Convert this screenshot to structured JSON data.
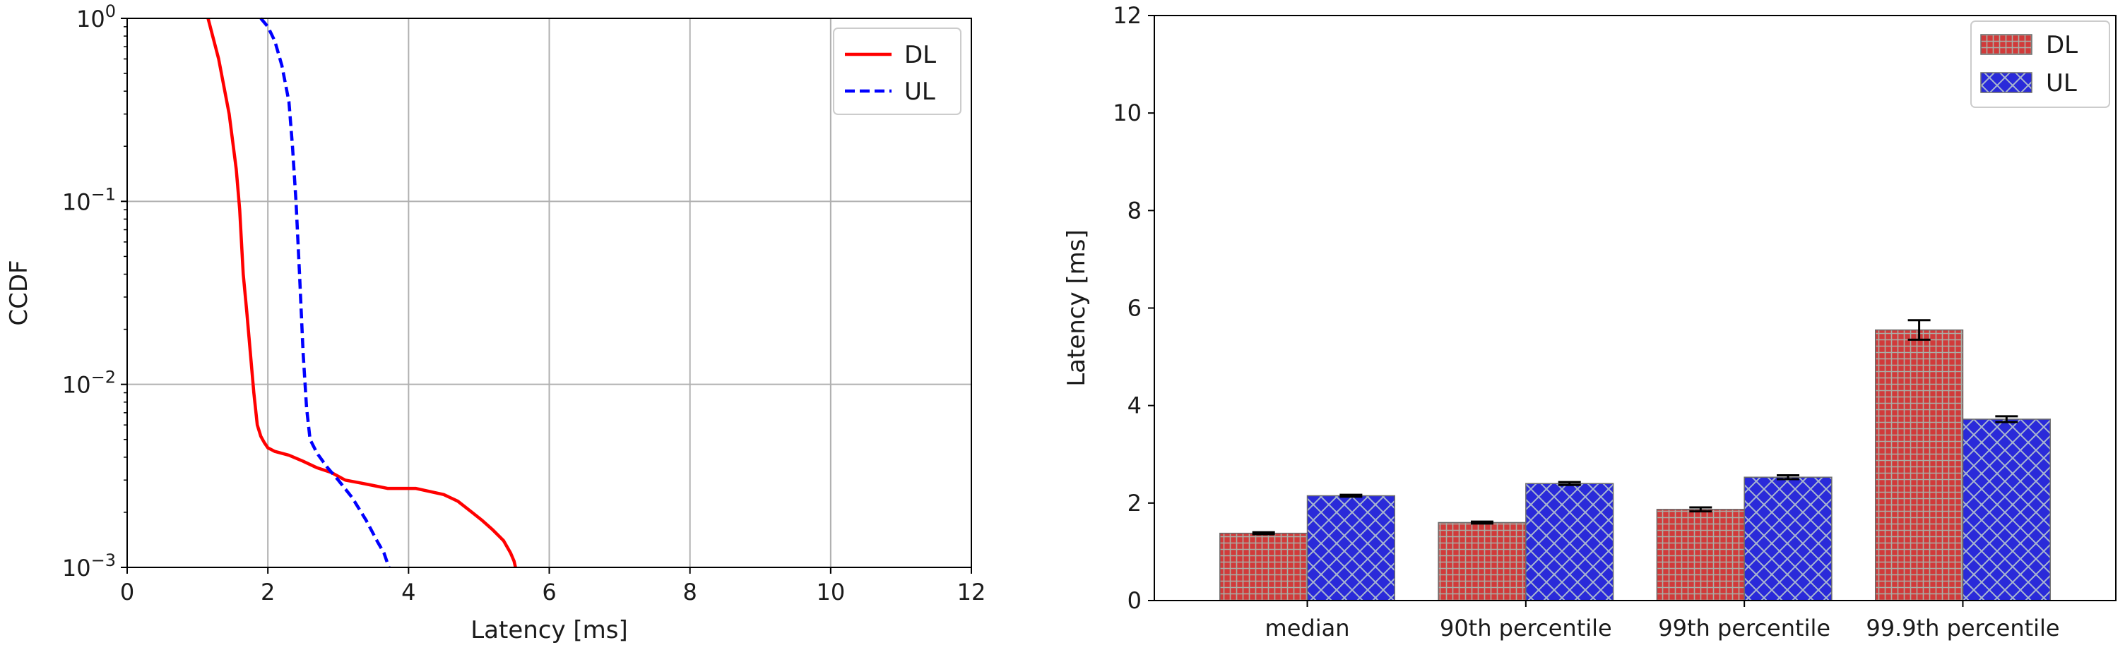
{
  "chart_data": [
    {
      "type": "line",
      "xlabel": "Latency [ms]",
      "ylabel": "CCDF",
      "xlim": [
        0,
        12
      ],
      "ylim": [
        0.001,
        1
      ],
      "yscale": "log",
      "grid": true,
      "legend_position": "top-right",
      "x_ticks": [
        "0",
        "2",
        "4",
        "6",
        "8",
        "10",
        "12"
      ],
      "y_ticks": [
        {
          "base": "10",
          "exp": "0"
        },
        {
          "base": "10",
          "exp": "−1"
        },
        {
          "base": "10",
          "exp": "−2"
        },
        {
          "base": "10",
          "exp": "−3"
        }
      ],
      "series": [
        {
          "name": "DL",
          "color": "#ff0000",
          "style": "solid",
          "x": [
            1.15,
            1.3,
            1.45,
            1.55,
            1.6,
            1.62,
            1.65,
            1.7,
            1.75,
            1.8,
            1.85,
            1.9,
            1.95,
            2.0,
            2.1,
            2.3,
            2.5,
            2.7,
            2.9,
            3.1,
            3.3,
            3.5,
            3.7,
            3.9,
            4.1,
            4.3,
            4.5,
            4.7,
            4.9,
            5.05,
            5.2,
            5.35,
            5.45,
            5.5,
            5.52
          ],
          "y": [
            1.0,
            0.6,
            0.3,
            0.15,
            0.09,
            0.065,
            0.04,
            0.025,
            0.015,
            0.009,
            0.006,
            0.0052,
            0.0048,
            0.0045,
            0.0043,
            0.0041,
            0.0038,
            0.0035,
            0.0033,
            0.003,
            0.0029,
            0.0028,
            0.0027,
            0.0027,
            0.0027,
            0.0026,
            0.0025,
            0.0023,
            0.002,
            0.0018,
            0.0016,
            0.0014,
            0.0012,
            0.00108,
            0.001
          ]
        },
        {
          "name": "UL",
          "color": "#0000ff",
          "style": "dashed",
          "x": [
            1.9,
            2.0,
            2.1,
            2.2,
            2.3,
            2.35,
            2.4,
            2.45,
            2.5,
            2.55,
            2.6,
            2.7,
            2.85,
            3.0,
            3.2,
            3.4,
            3.55,
            3.65,
            3.72
          ],
          "y": [
            1.0,
            0.9,
            0.75,
            0.55,
            0.35,
            0.2,
            0.1,
            0.04,
            0.015,
            0.0075,
            0.005,
            0.0042,
            0.0035,
            0.003,
            0.0024,
            0.0018,
            0.0014,
            0.0012,
            0.001
          ]
        }
      ]
    },
    {
      "type": "bar",
      "ylabel": "Latency [ms]",
      "xlabel": "",
      "ylim": [
        0,
        12
      ],
      "grid": false,
      "legend_position": "top-right",
      "categories": [
        "median",
        "90th percentile",
        "99th percentile",
        "99.9th percentile"
      ],
      "y_ticks": [
        "0",
        "2",
        "4",
        "6",
        "8",
        "10",
        "12"
      ],
      "series": [
        {
          "name": "DL",
          "color": "#d13a3a",
          "values": [
            1.38,
            1.6,
            1.87,
            5.55
          ],
          "errors": [
            0.02,
            0.02,
            0.04,
            0.2
          ]
        },
        {
          "name": "UL",
          "color": "#2a2ad9",
          "values": [
            2.15,
            2.4,
            2.53,
            3.72
          ],
          "errors": [
            0.02,
            0.03,
            0.04,
            0.06
          ]
        }
      ]
    }
  ]
}
